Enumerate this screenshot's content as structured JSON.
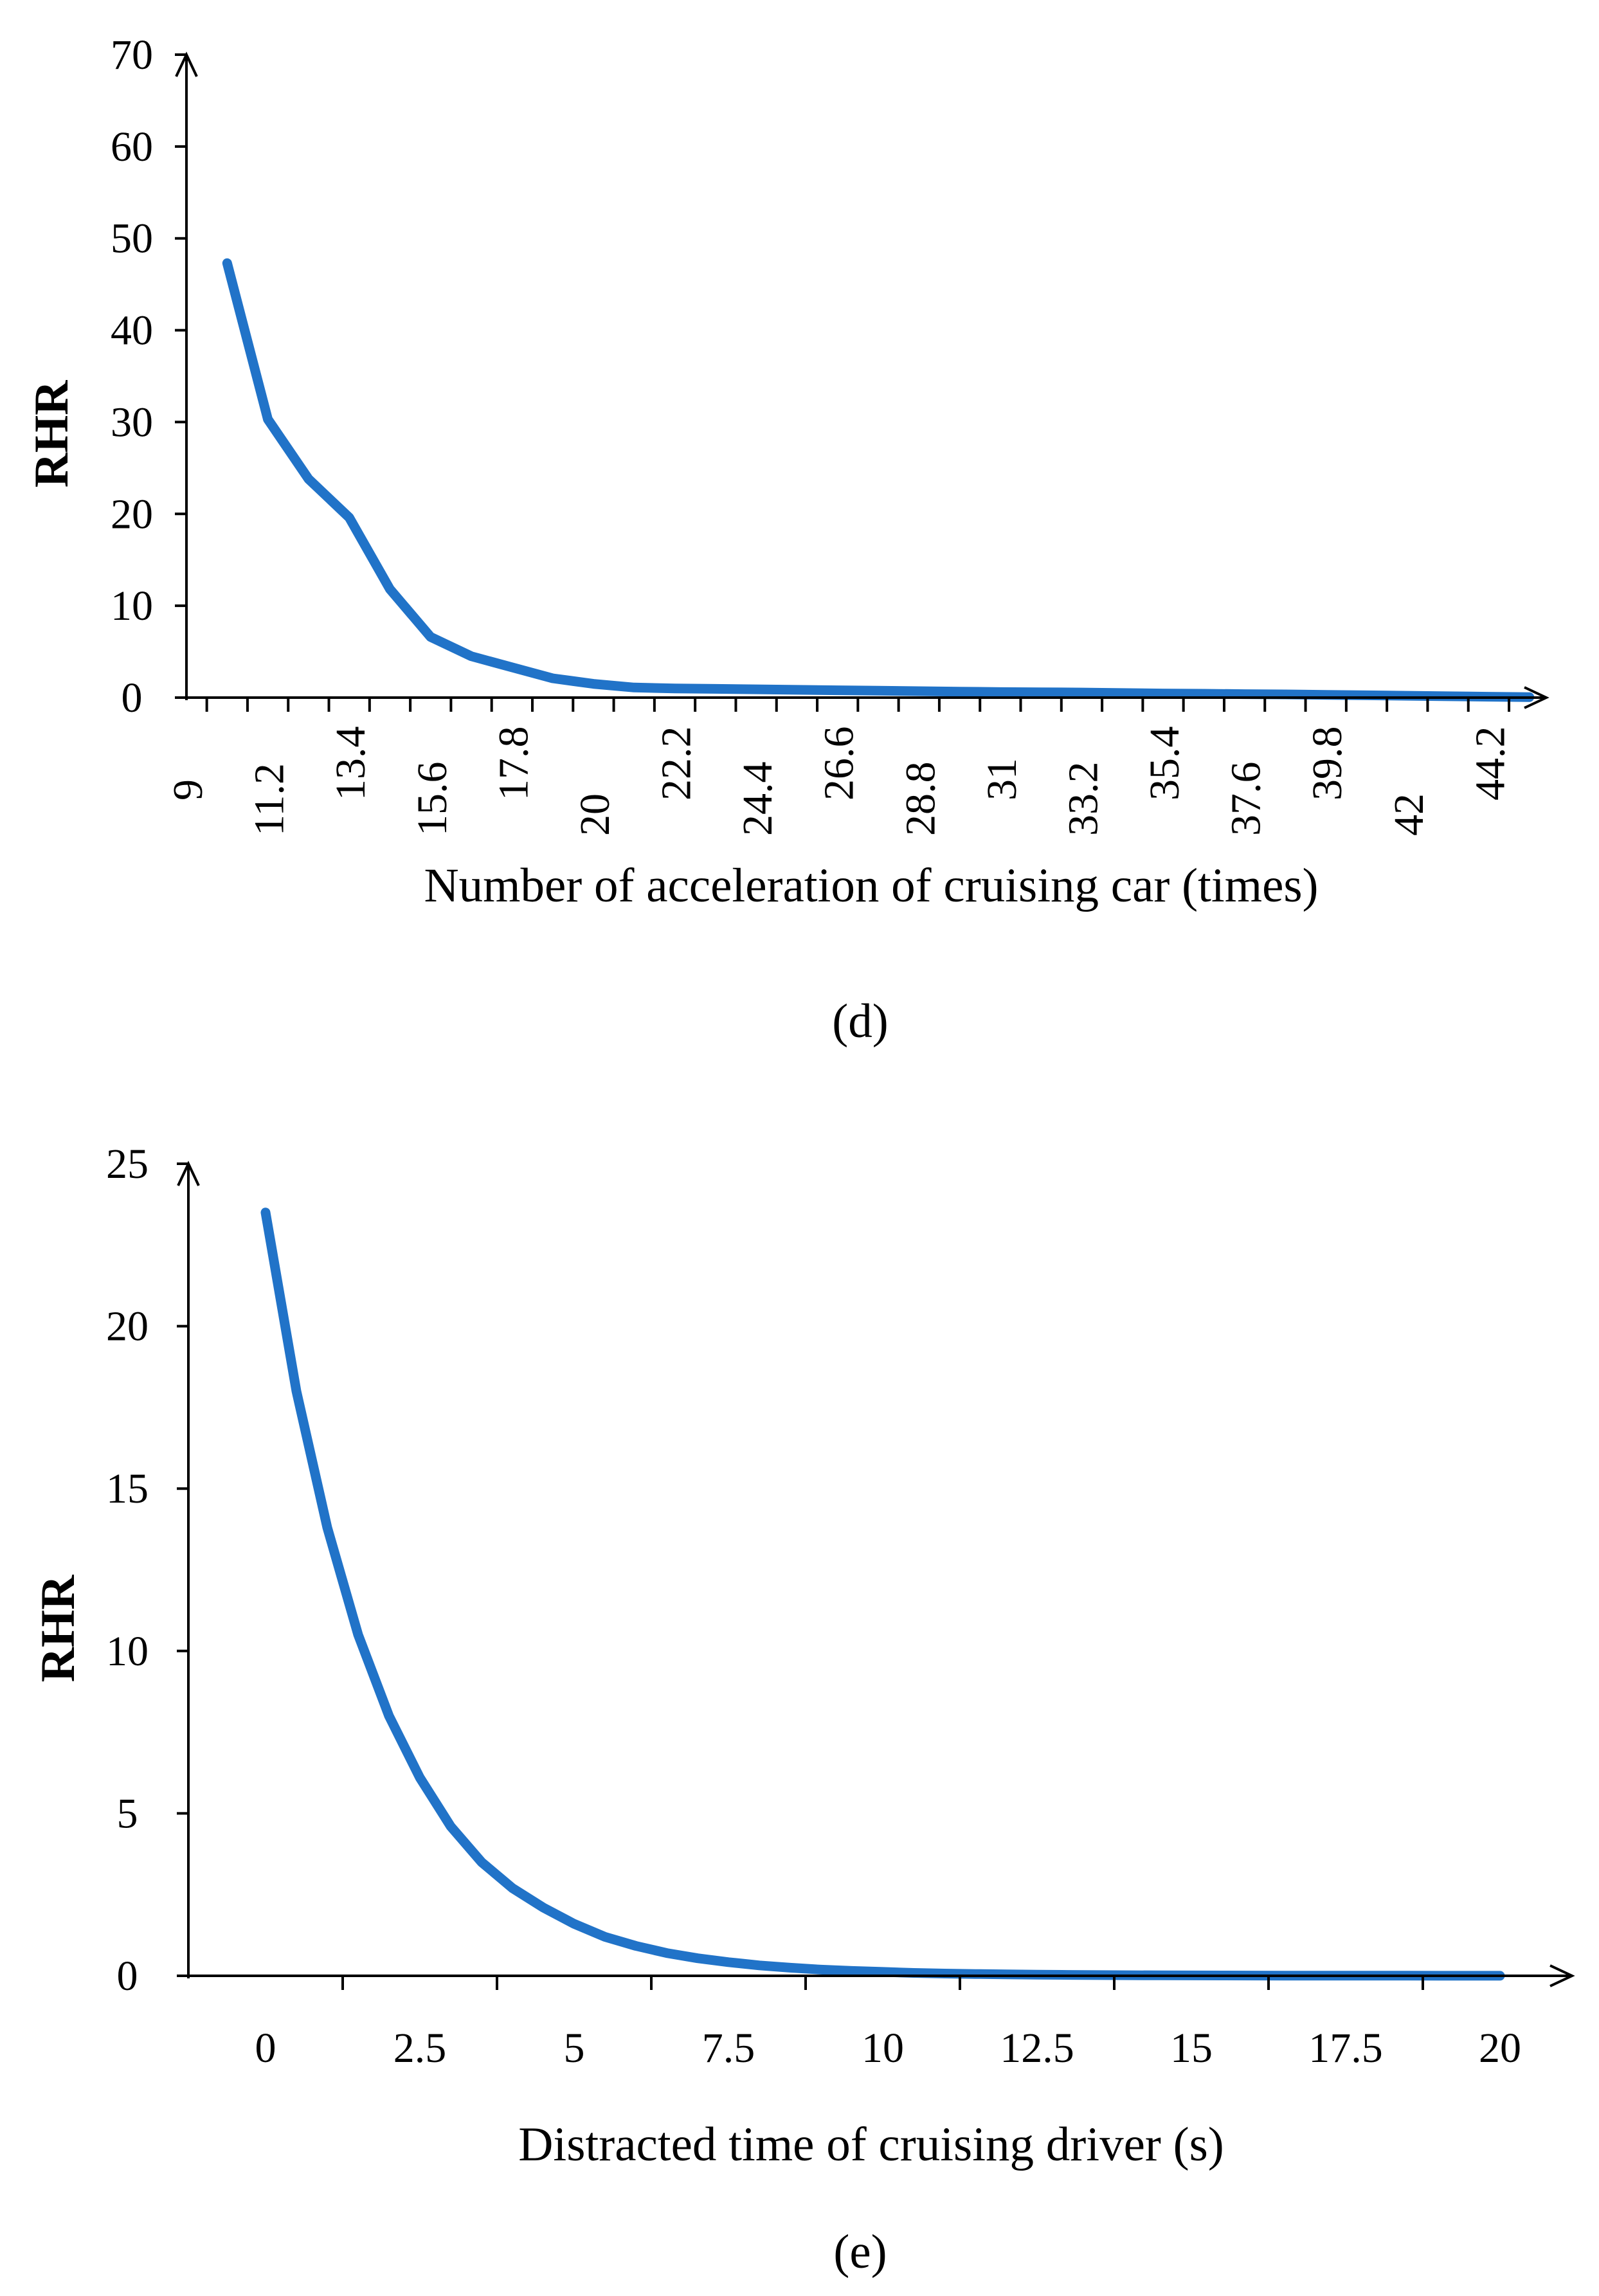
{
  "chart_data": [
    {
      "type": "line",
      "panel_label": "(d)",
      "xlabel": "Number of acceleration of cruising car (times)",
      "ylabel": "RHR",
      "ylim": [
        0,
        70
      ],
      "yticks": [
        "0",
        "10",
        "20",
        "30",
        "40",
        "50",
        "60",
        "70"
      ],
      "xticks": [
        "9",
        "11.2",
        "13.4",
        "15.6",
        "17.8",
        "20",
        "22.2",
        "24.4",
        "26.6",
        "28.8",
        "31",
        "33.2",
        "35.4",
        "37.6",
        "39.8",
        "42",
        "44.2"
      ],
      "line_color": "#2173C8",
      "series": [
        {
          "name": "RHR",
          "x": [
            10.1,
            11.2,
            12.3,
            13.4,
            14.5,
            15.6,
            16.7,
            17.8,
            18.9,
            20.0,
            21.1,
            22.2,
            23.3,
            24.4,
            25.5,
            26.6,
            27.7,
            28.8,
            29.9,
            31.0,
            32.1,
            33.2,
            34.3,
            35.4,
            36.5,
            37.6,
            38.7,
            39.8,
            40.9,
            42.0,
            43.1,
            44.2,
            45.3
          ],
          "values": [
            47.3,
            30.3,
            23.8,
            19.6,
            11.8,
            6.6,
            4.5,
            3.3,
            2.1,
            1.5,
            1.1,
            1.0,
            0.95,
            0.9,
            0.85,
            0.8,
            0.75,
            0.7,
            0.65,
            0.6,
            0.58,
            0.55,
            0.5,
            0.45,
            0.42,
            0.38,
            0.35,
            0.3,
            0.25,
            0.2,
            0.15,
            0.1,
            0.05
          ]
        }
      ]
    },
    {
      "type": "line",
      "panel_label": "(e)",
      "xlabel": "Distracted time of cruising driver (s)",
      "ylabel": "RHR",
      "ylim": [
        0,
        25
      ],
      "xlim": [
        -1.25,
        21.25
      ],
      "yticks": [
        "0",
        "5",
        "10",
        "15",
        "20",
        "25"
      ],
      "xticks": [
        "0",
        "2.5",
        "5",
        "7.5",
        "10",
        "12.5",
        "15",
        "17.5",
        "20"
      ],
      "line_color": "#2173C8",
      "series": [
        {
          "name": "RHR",
          "x": [
            0,
            0.5,
            1,
            1.5,
            2,
            2.5,
            3,
            3.5,
            4,
            4.5,
            5,
            5.5,
            6,
            6.5,
            7,
            7.5,
            8,
            8.5,
            9,
            9.5,
            10,
            10.5,
            11,
            11.5,
            12,
            12.5,
            13,
            13.5,
            14,
            14.5,
            15,
            15.5,
            16,
            16.5,
            17,
            17.5,
            18,
            18.5,
            19,
            19.5,
            20
          ],
          "values": [
            23.5,
            18.0,
            13.8,
            10.5,
            8.0,
            6.1,
            4.6,
            3.5,
            2.7,
            2.1,
            1.6,
            1.2,
            0.92,
            0.7,
            0.54,
            0.42,
            0.32,
            0.25,
            0.19,
            0.15,
            0.12,
            0.09,
            0.07,
            0.055,
            0.045,
            0.035,
            0.028,
            0.022,
            0.018,
            0.014,
            0.011,
            0.009,
            0.007,
            0.006,
            0.005,
            0.004,
            0.003,
            0.003,
            0.002,
            0.002,
            0.002
          ]
        }
      ]
    }
  ]
}
